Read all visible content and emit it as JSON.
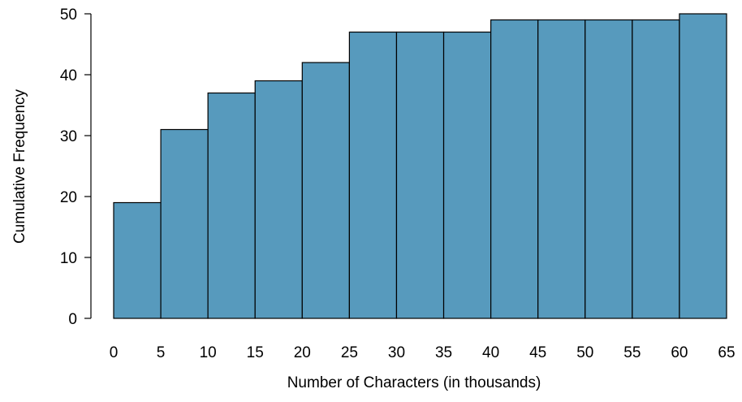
{
  "chart_data": {
    "type": "bar",
    "bins": [
      {
        "start": 0,
        "end": 5,
        "value": 19
      },
      {
        "start": 5,
        "end": 10,
        "value": 31
      },
      {
        "start": 10,
        "end": 15,
        "value": 37
      },
      {
        "start": 15,
        "end": 20,
        "value": 39
      },
      {
        "start": 20,
        "end": 25,
        "value": 42
      },
      {
        "start": 25,
        "end": 30,
        "value": 47
      },
      {
        "start": 30,
        "end": 35,
        "value": 47
      },
      {
        "start": 35,
        "end": 40,
        "value": 47
      },
      {
        "start": 40,
        "end": 45,
        "value": 49
      },
      {
        "start": 45,
        "end": 50,
        "value": 49
      },
      {
        "start": 50,
        "end": 55,
        "value": 49
      },
      {
        "start": 55,
        "end": 60,
        "value": 49
      },
      {
        "start": 60,
        "end": 65,
        "value": 50
      }
    ],
    "xlabel": "Number of Characters (in thousands)",
    "ylabel": "Cumulative Frequency",
    "xlim": [
      0,
      65
    ],
    "ylim": [
      0,
      50
    ],
    "x_ticks": [
      "0",
      "5",
      "10",
      "15",
      "20",
      "25",
      "30",
      "35",
      "40",
      "45",
      "50",
      "55",
      "60",
      "65"
    ],
    "y_ticks": [
      "0",
      "10",
      "20",
      "30",
      "40",
      "50"
    ],
    "bar_color": "#579abd",
    "grid": false
  }
}
